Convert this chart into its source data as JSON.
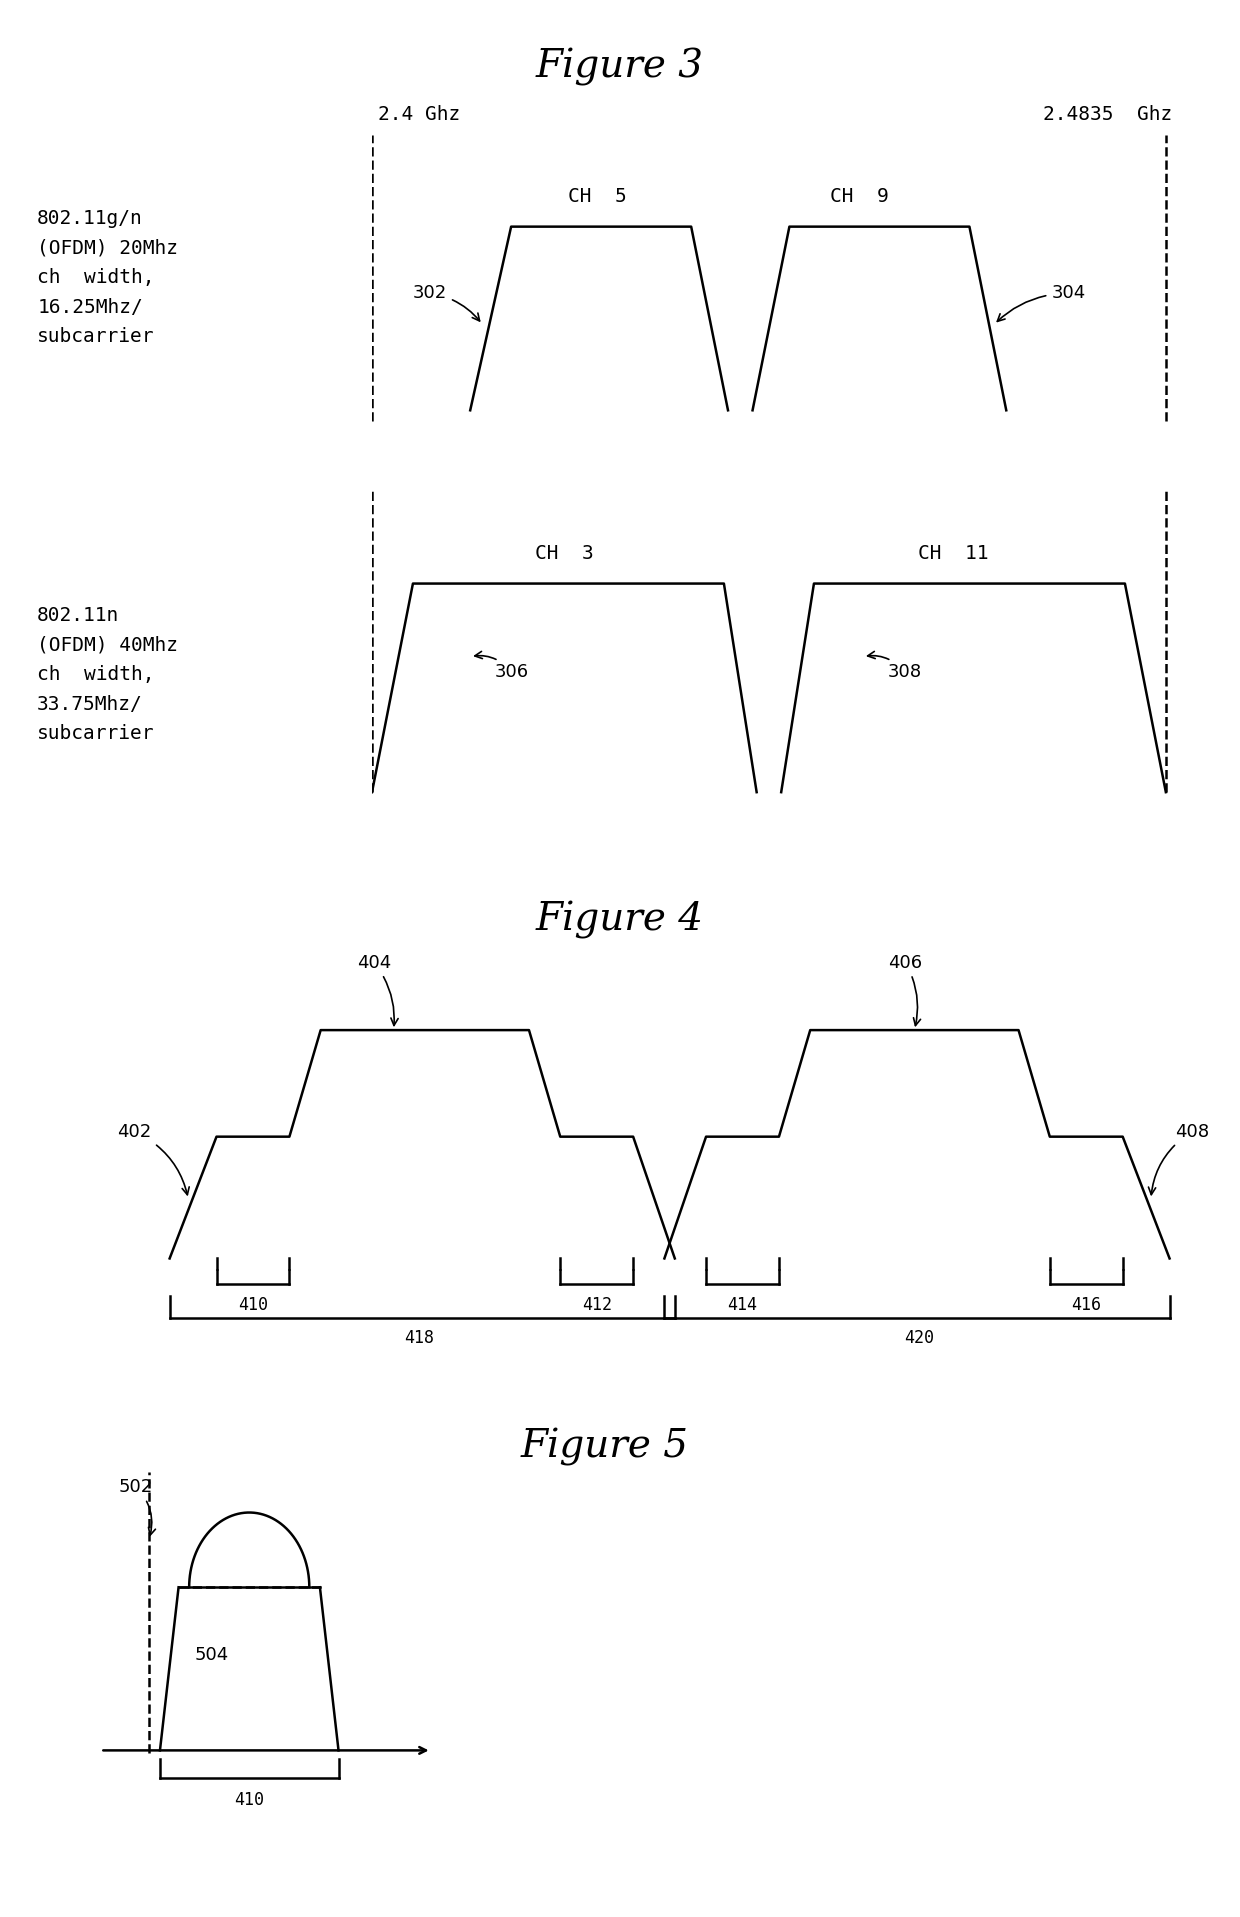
{
  "bg_color": "#ffffff",
  "fig_width": 12.4,
  "fig_height": 19.17,
  "fig3_title": "Figure 3",
  "fig4_title": "Figure 4",
  "fig5_title": "Figure 5",
  "fig3_label1": "2.4 Ghz",
  "fig3_label2": "2.4835  Ghz",
  "fig3_left_label1": "802.11g/n\n(OFDM) 20Mhz\nch  width,\n16.25Mhz/\nsubcarrier",
  "fig3_left_label2": "802.11n\n(OFDM) 40Mhz\nch  width,\n33.75Mhz/\nsubcarrier",
  "ch5_label": "CH  5",
  "ch9_label": "CH  9",
  "ch3_label": "CH  3",
  "ch11_label": "CH  11",
  "ref302": "302",
  "ref304": "304",
  "ref306": "306",
  "ref308": "308",
  "ref402": "402",
  "ref404": "404",
  "ref406": "406",
  "ref408": "408",
  "ref410a": "410",
  "ref412": "412",
  "ref414": "414",
  "ref416": "416",
  "ref418": "418",
  "ref420": "420",
  "ref502": "502",
  "ref504": "504",
  "ref410b": "410",
  "line_color": "#000000",
  "line_width": 1.8,
  "font_size_title": 28,
  "font_size_label": 14,
  "font_size_ref": 13
}
